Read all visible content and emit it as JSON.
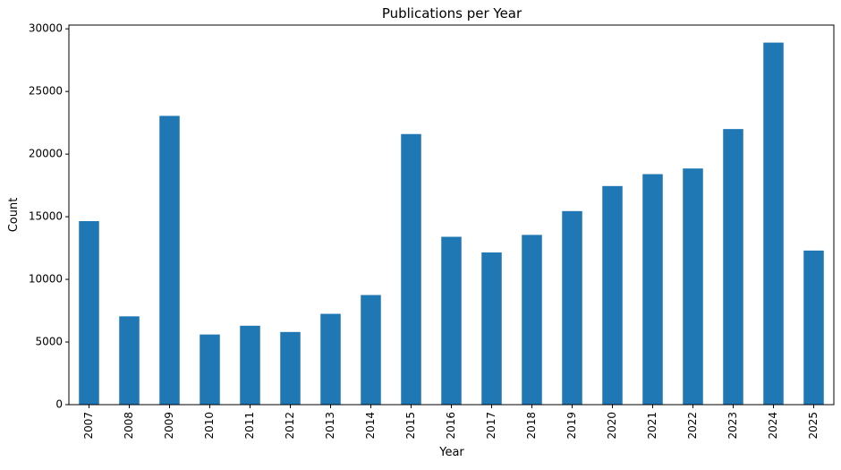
{
  "chart_data": {
    "type": "bar",
    "title": "Publications per Year",
    "xlabel": "Year",
    "ylabel": "Count",
    "categories": [
      "2007",
      "2008",
      "2009",
      "2010",
      "2011",
      "2012",
      "2013",
      "2014",
      "2015",
      "2016",
      "2017",
      "2018",
      "2019",
      "2020",
      "2021",
      "2022",
      "2023",
      "2024",
      "2025"
    ],
    "values": [
      14650,
      7050,
      23050,
      5600,
      6300,
      5800,
      7250,
      8750,
      21600,
      13400,
      12150,
      13550,
      15450,
      17450,
      18400,
      18850,
      22000,
      28900,
      12300
    ],
    "ylim": [
      0,
      30300
    ],
    "yticks": [
      0,
      5000,
      10000,
      15000,
      20000,
      25000,
      30000
    ],
    "bar_color": "#1f77b4",
    "grid": false,
    "legend": "none"
  }
}
